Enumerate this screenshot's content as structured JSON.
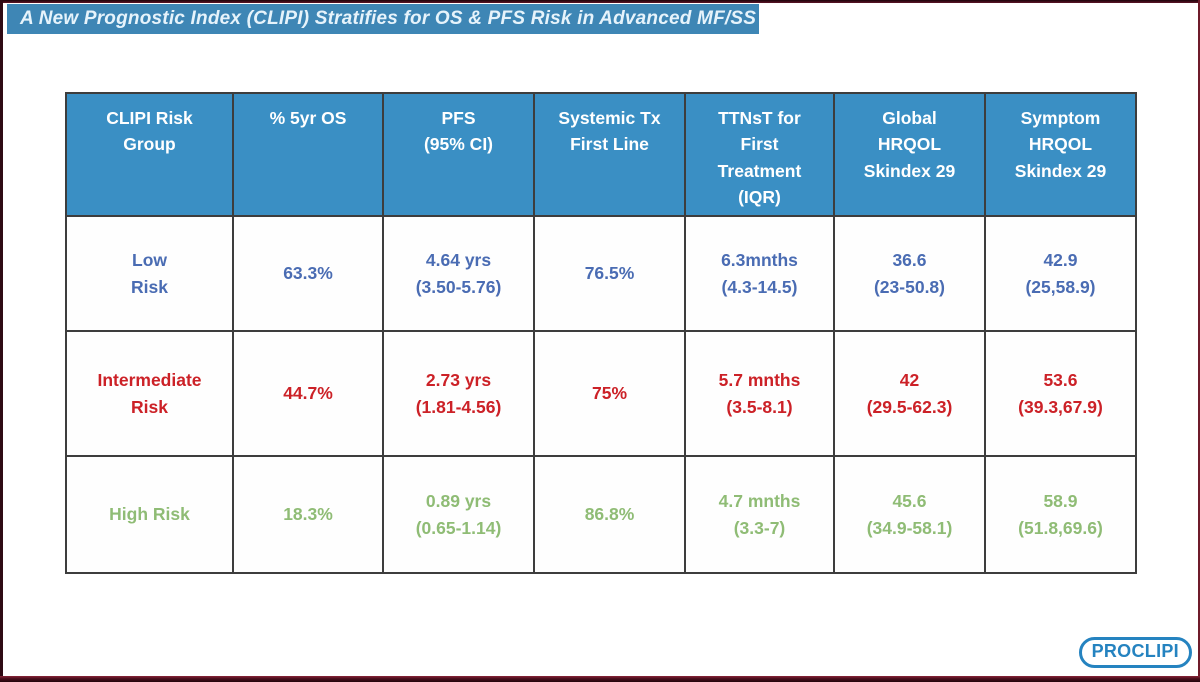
{
  "title": {
    "text": "A New Prognostic Index (CLIPI) Stratifies for OS & PFS Risk in Advanced MF/SS"
  },
  "colors": {
    "title_bar_bg": "#3e86b5",
    "title_text": "#e6f3fb",
    "header_bg": "#3a8fc4",
    "header_text": "#ffffff",
    "table_border": "#3d3d3d",
    "low_risk_text": "#4a6cb3",
    "intermediate_risk_text": "#cc2127",
    "high_risk_text": "#8fbc75",
    "logo_blue": "#2583c0",
    "frame_maroon": "#4a0e1c"
  },
  "table": {
    "headers": [
      "CLIPI Risk\nGroup",
      "% 5yr OS",
      "PFS\n(95% CI)",
      "Systemic Tx\nFirst Line",
      "TTNsT for\nFirst\nTreatment\n(IQR)",
      "Global\nHRQOL\nSkindex 29",
      "Symptom\nHRQOL\nSkindex 29"
    ],
    "rows": [
      {
        "name": "low-risk",
        "color": "#4a6cb3",
        "cells": [
          "Low\nRisk",
          "63.3%",
          "4.64 yrs\n(3.50-5.76)",
          "76.5%",
          "6.3mnths\n(4.3-14.5)",
          "36.6\n(23-50.8)",
          "42.9\n(25,58.9)"
        ]
      },
      {
        "name": "intermediate-risk",
        "color": "#cc2127",
        "cells": [
          "Intermediate\nRisk",
          "44.7%",
          "2.73 yrs\n(1.81-4.56)",
          "75%",
          "5.7 mnths\n(3.5-8.1)",
          "42\n(29.5-62.3)",
          "53.6\n(39.3,67.9)"
        ]
      },
      {
        "name": "high-risk",
        "color": "#8fbc75",
        "cells": [
          "High Risk",
          "18.3%",
          "0.89 yrs\n(0.65-1.14)",
          "86.8%",
          "4.7 mnths\n(3.3-7)",
          "45.6\n(34.9-58.1)",
          "58.9\n(51.8,69.6)"
        ]
      }
    ]
  },
  "logo": {
    "text": "PROCLIPI"
  }
}
